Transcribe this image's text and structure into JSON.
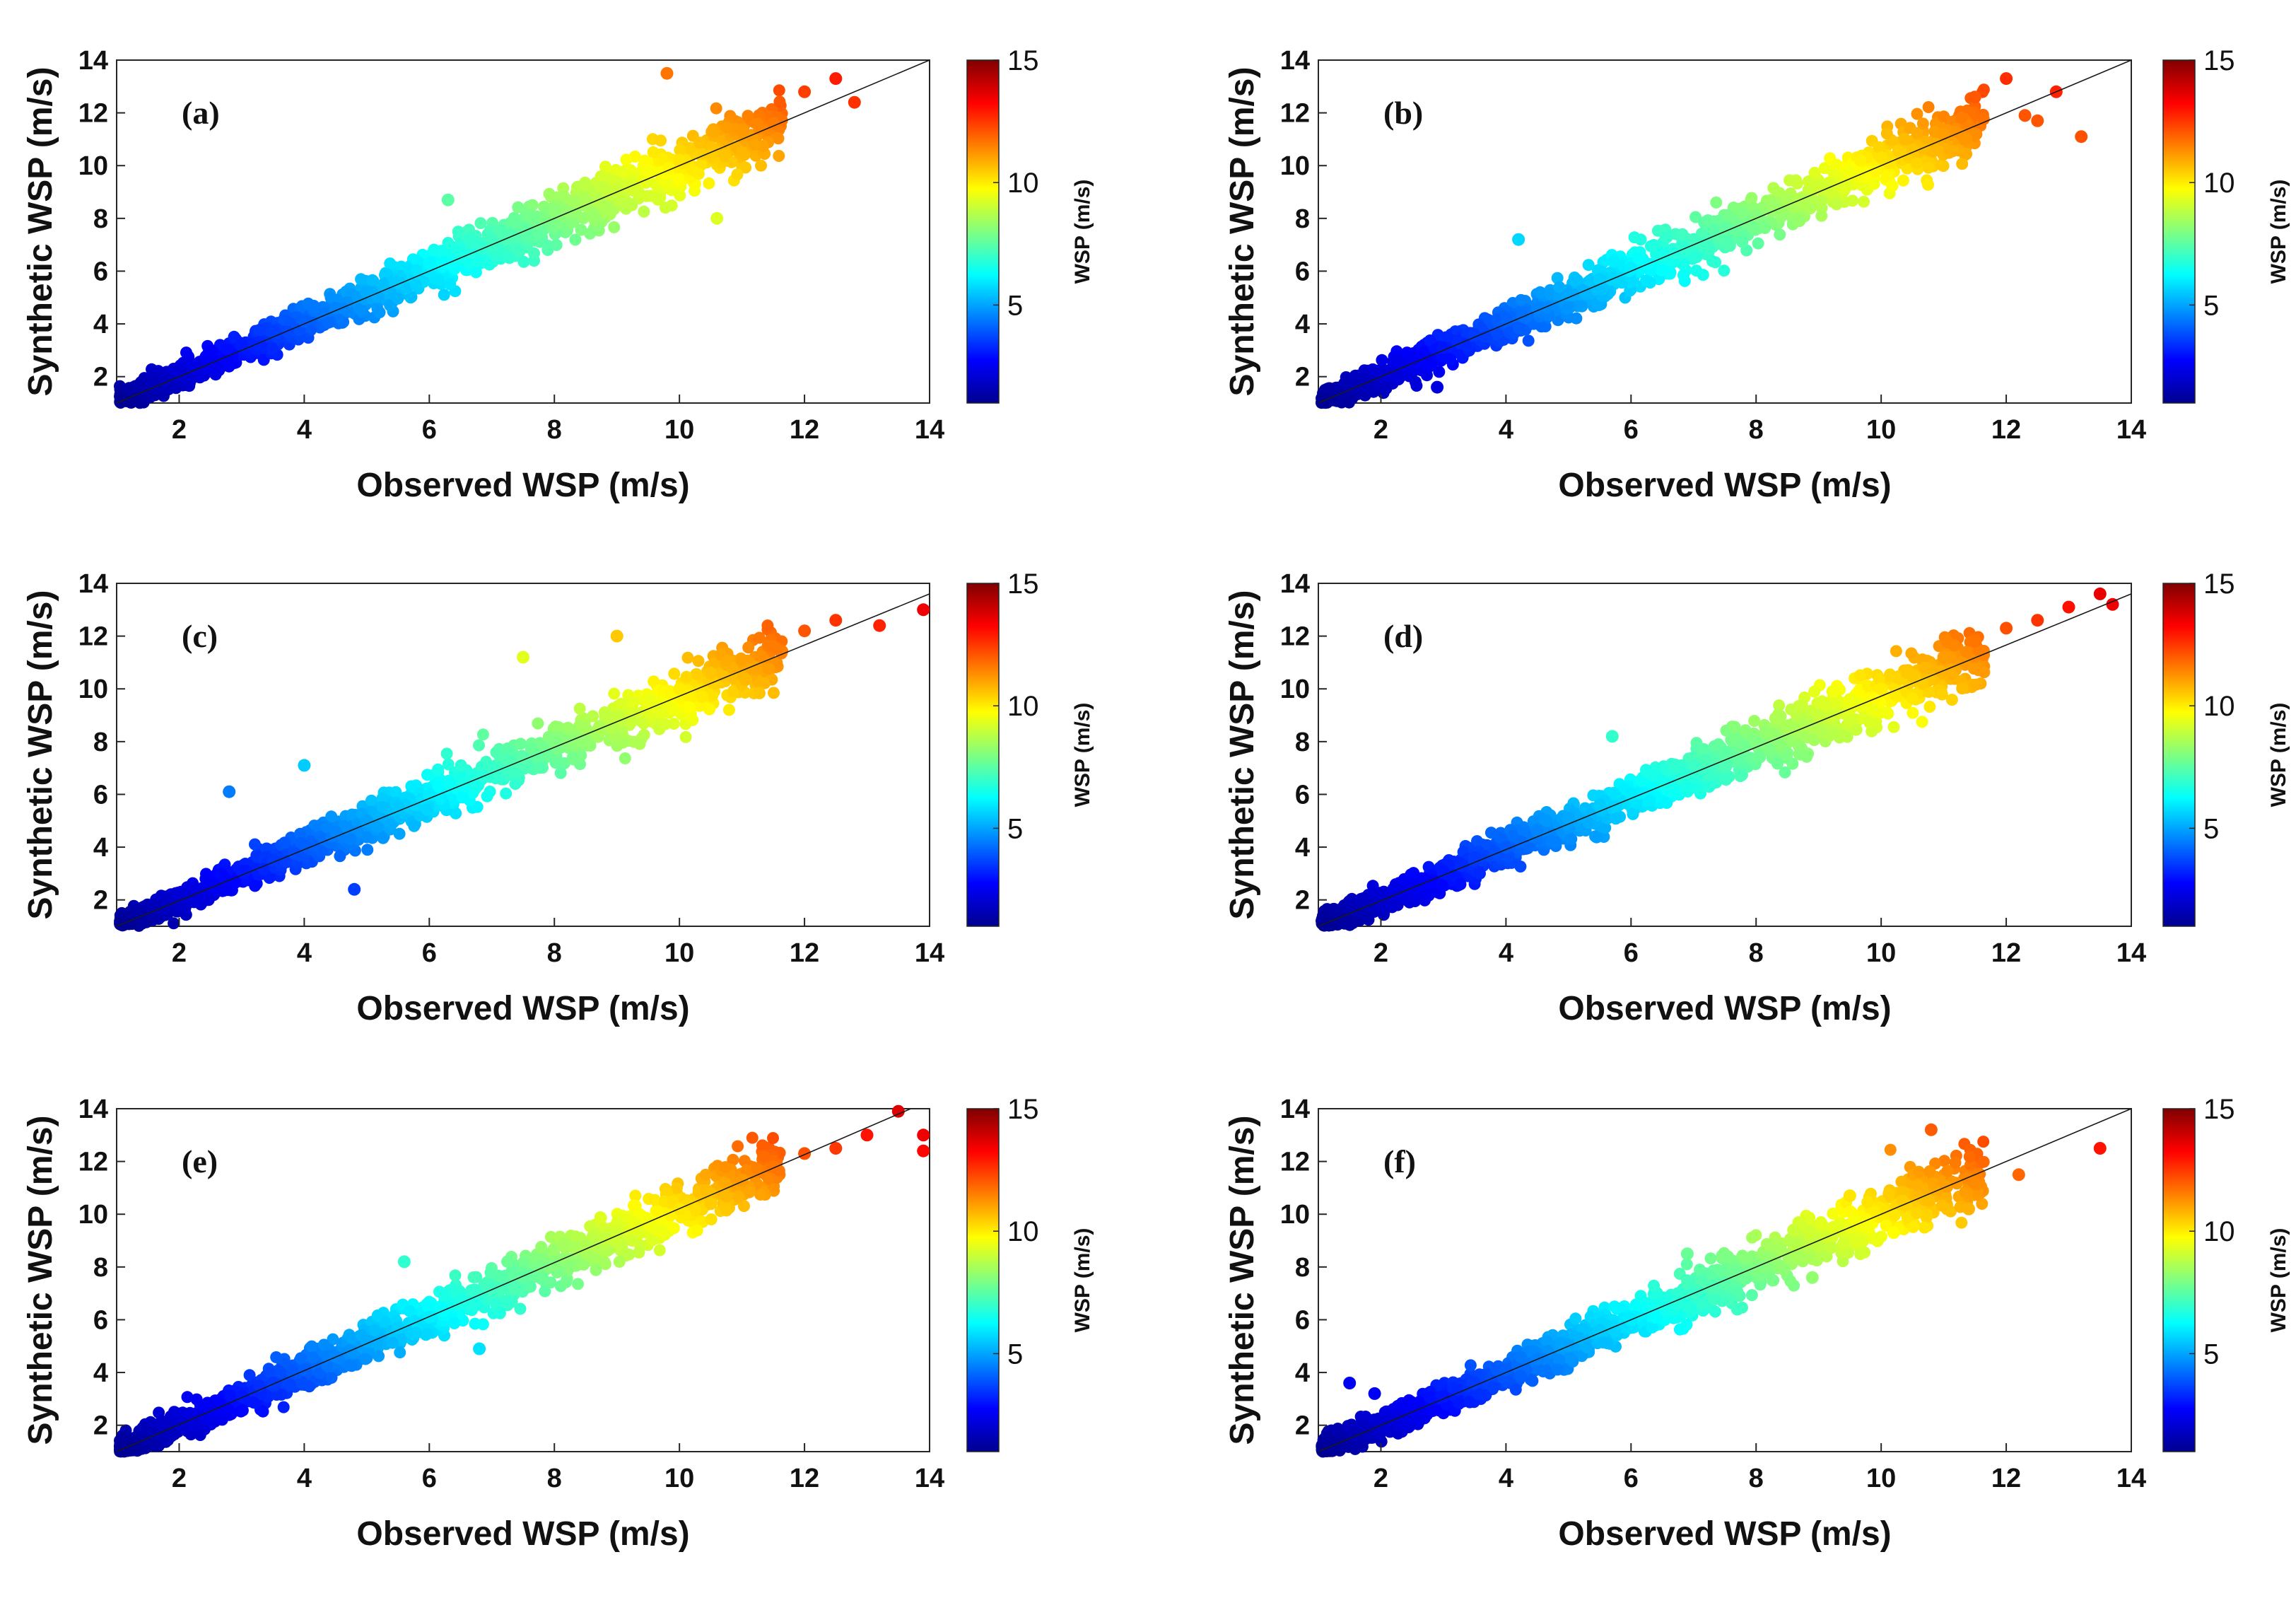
{
  "colormap": [
    "#00008f",
    "#0000ff",
    "#0080ff",
    "#00ffff",
    "#80ff80",
    "#ffff00",
    "#ff8000",
    "#ff0000",
    "#800000"
  ],
  "colorbar": {
    "label": "WSP (m/s)",
    "range": [
      1,
      15
    ],
    "ticks": [
      5,
      10,
      15
    ]
  },
  "chart_data": [
    {
      "type": "scatter",
      "panel_label": "(a)",
      "xlabel": "Observed WSP (m/s)",
      "ylabel": "Synthetic WSP (m/s)",
      "xlim": [
        1,
        14
      ],
      "ylim": [
        1,
        14
      ],
      "xticks": [
        2,
        4,
        6,
        8,
        10,
        12,
        14
      ],
      "yticks": [
        2,
        4,
        6,
        8,
        10,
        12,
        14
      ],
      "reference_line": {
        "x": [
          1,
          14
        ],
        "y": [
          1,
          14
        ]
      },
      "points": [
        [
          1.2,
          1.1
        ],
        [
          1.6,
          1.8
        ],
        [
          2.0,
          2.2
        ],
        [
          2.5,
          2.6
        ],
        [
          3.0,
          3.2
        ],
        [
          3.5,
          3.7
        ],
        [
          4.0,
          4.1
        ],
        [
          4.5,
          4.6
        ],
        [
          5.0,
          5.2
        ],
        [
          5.5,
          5.6
        ],
        [
          6.0,
          6.3
        ],
        [
          6.5,
          6.7
        ],
        [
          7.0,
          7.2
        ],
        [
          7.5,
          7.6
        ],
        [
          8.0,
          8.3
        ],
        [
          8.5,
          8.7
        ],
        [
          9.0,
          9.1
        ],
        [
          9.5,
          9.8
        ],
        [
          10.0,
          10.2
        ],
        [
          10.5,
          10.4
        ],
        [
          11.0,
          11.3
        ],
        [
          11.5,
          11.6
        ],
        [
          12.0,
          12.8
        ],
        [
          12.5,
          13.3
        ],
        [
          12.8,
          12.4
        ],
        [
          10.6,
          8.0
        ],
        [
          9.8,
          13.5
        ],
        [
          6.3,
          8.7
        ]
      ]
    },
    {
      "type": "scatter",
      "panel_label": "(b)",
      "xlabel": "Observed WSP (m/s)",
      "ylabel": "Synthetic WSP (m/s)",
      "xlim": [
        1,
        14
      ],
      "ylim": [
        1,
        14
      ],
      "xticks": [
        2,
        4,
        6,
        8,
        10,
        12,
        14
      ],
      "yticks": [
        2,
        4,
        6,
        8,
        10,
        12,
        14
      ],
      "reference_line": {
        "x": [
          1,
          14
        ],
        "y": [
          1,
          14
        ]
      },
      "points": [
        [
          1.2,
          1.2
        ],
        [
          1.6,
          1.7
        ],
        [
          2.0,
          2.1
        ],
        [
          2.5,
          2.6
        ],
        [
          3.0,
          3.1
        ],
        [
          3.5,
          3.6
        ],
        [
          4.0,
          4.2
        ],
        [
          4.5,
          4.6
        ],
        [
          5.0,
          5.1
        ],
        [
          5.5,
          5.7
        ],
        [
          6.0,
          6.1
        ],
        [
          6.5,
          6.6
        ],
        [
          7.0,
          7.2
        ],
        [
          7.5,
          7.6
        ],
        [
          8.0,
          8.1
        ],
        [
          8.5,
          8.7
        ],
        [
          9.0,
          9.2
        ],
        [
          9.5,
          9.7
        ],
        [
          10.0,
          10.3
        ],
        [
          10.5,
          10.6
        ],
        [
          11.0,
          11.2
        ],
        [
          11.5,
          12.6
        ],
        [
          12.0,
          13.3
        ],
        [
          12.3,
          11.9
        ],
        [
          12.5,
          11.7
        ],
        [
          12.8,
          12.8
        ],
        [
          13.2,
          11.1
        ],
        [
          4.2,
          7.2
        ],
        [
          2.9,
          1.6
        ]
      ]
    },
    {
      "type": "scatter",
      "panel_label": "(c)",
      "xlabel": "Observed WSP (m/s)",
      "ylabel": "Synthetic WSP (m/s)",
      "xlim": [
        1,
        14
      ],
      "ylim": [
        1,
        14
      ],
      "xticks": [
        2,
        4,
        6,
        8,
        10,
        12,
        14
      ],
      "yticks": [
        2,
        4,
        6,
        8,
        10,
        12,
        14
      ],
      "reference_line": {
        "x": [
          1,
          14
        ],
        "y": [
          1,
          13.6
        ]
      },
      "points": [
        [
          1.2,
          1.1
        ],
        [
          1.6,
          1.7
        ],
        [
          2.0,
          2.1
        ],
        [
          2.5,
          2.6
        ],
        [
          3.0,
          3.1
        ],
        [
          3.5,
          3.5
        ],
        [
          4.0,
          4.1
        ],
        [
          4.5,
          4.6
        ],
        [
          5.0,
          5.0
        ],
        [
          5.5,
          5.5
        ],
        [
          6.0,
          6.0
        ],
        [
          6.5,
          6.6
        ],
        [
          7.0,
          7.0
        ],
        [
          7.5,
          7.4
        ],
        [
          8.0,
          8.0
        ],
        [
          8.5,
          8.5
        ],
        [
          9.0,
          8.9
        ],
        [
          9.5,
          9.5
        ],
        [
          10.0,
          10.0
        ],
        [
          10.5,
          10.6
        ],
        [
          11.0,
          11.1
        ],
        [
          11.5,
          11.6
        ],
        [
          12.0,
          12.2
        ],
        [
          12.5,
          12.6
        ],
        [
          13.2,
          12.4
        ],
        [
          13.9,
          13.0
        ],
        [
          2.8,
          6.1
        ],
        [
          4.0,
          7.1
        ],
        [
          4.8,
          2.4
        ],
        [
          9.0,
          12.0
        ],
        [
          7.5,
          11.2
        ]
      ]
    },
    {
      "type": "scatter",
      "panel_label": "(d)",
      "xlabel": "Observed WSP (m/s)",
      "ylabel": "Synthetic WSP (m/s)",
      "xlim": [
        1,
        14
      ],
      "ylim": [
        1,
        14
      ],
      "xticks": [
        2,
        4,
        6,
        8,
        10,
        12,
        14
      ],
      "yticks": [
        2,
        4,
        6,
        8,
        10,
        12,
        14
      ],
      "reference_line": {
        "x": [
          1,
          14
        ],
        "y": [
          1,
          13.6
        ]
      },
      "points": [
        [
          1.2,
          1.1
        ],
        [
          1.6,
          1.6
        ],
        [
          2.0,
          2.1
        ],
        [
          2.5,
          2.5
        ],
        [
          3.0,
          3.1
        ],
        [
          3.5,
          3.6
        ],
        [
          4.0,
          4.0
        ],
        [
          4.5,
          4.6
        ],
        [
          5.0,
          5.1
        ],
        [
          5.5,
          5.6
        ],
        [
          6.0,
          6.0
        ],
        [
          6.5,
          6.5
        ],
        [
          7.0,
          7.1
        ],
        [
          7.5,
          7.5
        ],
        [
          8.0,
          8.0
        ],
        [
          8.5,
          8.6
        ],
        [
          9.0,
          9.0
        ],
        [
          9.5,
          9.6
        ],
        [
          10.0,
          10.0
        ],
        [
          10.5,
          10.5
        ],
        [
          11.0,
          11.2
        ],
        [
          11.5,
          11.8
        ],
        [
          12.0,
          12.3
        ],
        [
          12.5,
          12.6
        ],
        [
          13.0,
          13.1
        ],
        [
          13.5,
          13.6
        ],
        [
          13.7,
          13.2
        ],
        [
          5.7,
          8.2
        ]
      ]
    },
    {
      "type": "scatter",
      "panel_label": "(e)",
      "xlabel": "Observed WSP (m/s)",
      "ylabel": "Synthetic WSP (m/s)",
      "xlim": [
        1,
        14
      ],
      "ylim": [
        1,
        14
      ],
      "xticks": [
        2,
        4,
        6,
        8,
        10,
        12,
        14
      ],
      "yticks": [
        2,
        4,
        6,
        8,
        10,
        12,
        14
      ],
      "reference_line": {
        "x": [
          1,
          13.7
        ],
        "y": [
          1,
          14
        ]
      },
      "points": [
        [
          1.2,
          1.1
        ],
        [
          1.6,
          1.7
        ],
        [
          2.0,
          2.1
        ],
        [
          2.5,
          2.6
        ],
        [
          3.0,
          3.1
        ],
        [
          3.5,
          3.6
        ],
        [
          4.0,
          4.1
        ],
        [
          4.5,
          4.6
        ],
        [
          5.0,
          5.2
        ],
        [
          5.5,
          5.7
        ],
        [
          6.0,
          6.1
        ],
        [
          6.5,
          6.7
        ],
        [
          7.0,
          7.2
        ],
        [
          7.5,
          7.6
        ],
        [
          8.0,
          8.1
        ],
        [
          8.5,
          8.8
        ],
        [
          9.0,
          9.2
        ],
        [
          9.5,
          9.7
        ],
        [
          10.0,
          10.2
        ],
        [
          10.5,
          10.4
        ],
        [
          11.0,
          11.3
        ],
        [
          11.5,
          11.8
        ],
        [
          12.0,
          12.3
        ],
        [
          12.5,
          12.5
        ],
        [
          13.0,
          13.0
        ],
        [
          13.5,
          13.9
        ],
        [
          13.9,
          13.0
        ],
        [
          13.9,
          12.4
        ],
        [
          6.8,
          4.9
        ],
        [
          5.6,
          8.2
        ]
      ]
    },
    {
      "type": "scatter",
      "panel_label": "(f)",
      "xlabel": "Observed WSP (m/s)",
      "ylabel": "Synthetic WSP (m/s)",
      "xlim": [
        1,
        14
      ],
      "ylim": [
        1,
        14
      ],
      "xticks": [
        2,
        4,
        6,
        8,
        10,
        12,
        14
      ],
      "yticks": [
        2,
        4,
        6,
        8,
        10,
        12,
        14
      ],
      "reference_line": {
        "x": [
          1,
          14
        ],
        "y": [
          1,
          14
        ]
      },
      "points": [
        [
          1.2,
          1.2
        ],
        [
          1.6,
          1.6
        ],
        [
          2.0,
          2.1
        ],
        [
          2.5,
          2.6
        ],
        [
          3.0,
          3.1
        ],
        [
          3.5,
          3.6
        ],
        [
          4.0,
          4.1
        ],
        [
          4.5,
          4.5
        ],
        [
          5.0,
          5.0
        ],
        [
          5.5,
          5.6
        ],
        [
          6.0,
          6.0
        ],
        [
          6.5,
          6.6
        ],
        [
          7.0,
          7.0
        ],
        [
          7.5,
          7.4
        ],
        [
          7.7,
          6.4
        ],
        [
          6.9,
          8.5
        ],
        [
          8.6,
          9.4
        ],
        [
          8.9,
          7.6
        ],
        [
          9.0,
          8.8
        ],
        [
          9.4,
          8.9
        ],
        [
          9.5,
          10.7
        ],
        [
          10.2,
          9.3
        ],
        [
          10.8,
          13.2
        ],
        [
          11.4,
          10.2
        ],
        [
          12.2,
          11.5
        ],
        [
          13.5,
          12.5
        ],
        [
          1.5,
          3.6
        ],
        [
          1.9,
          3.2
        ]
      ]
    }
  ]
}
